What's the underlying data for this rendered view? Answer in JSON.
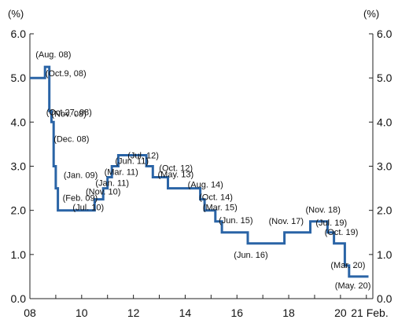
{
  "chart_data": {
    "type": "line",
    "title": "",
    "xlabel": "",
    "ylabel": "",
    "y_unit_left": "(%)",
    "y_unit_right": "(%)",
    "ylim": [
      0,
      6
    ],
    "y_ticks": [
      "0.0",
      "1.0",
      "2.0",
      "3.0",
      "4.0",
      "5.0",
      "6.0"
    ],
    "x_ticks": [
      "08",
      "10",
      "12",
      "14",
      "16",
      "18",
      "20",
      "21 Feb."
    ],
    "grid": false,
    "line_color": "#2a64a6",
    "series": [
      {
        "step": true,
        "points": [
          [
            "2008-01",
            5.0
          ],
          [
            "2008-08",
            5.25
          ],
          [
            "2008-10",
            5.0
          ],
          [
            "2008-10",
            4.25
          ],
          [
            "2008-11",
            4.0
          ],
          [
            "2008-12",
            3.0
          ],
          [
            "2009-01",
            2.5
          ],
          [
            "2009-02",
            2.0
          ],
          [
            "2010-07",
            2.25
          ],
          [
            "2010-11",
            2.5
          ],
          [
            "2011-01",
            2.75
          ],
          [
            "2011-03",
            3.0
          ],
          [
            "2011-06",
            3.25
          ],
          [
            "2012-07",
            3.0
          ],
          [
            "2012-10",
            2.75
          ],
          [
            "2013-05",
            2.5
          ],
          [
            "2014-08",
            2.25
          ],
          [
            "2014-10",
            2.0
          ],
          [
            "2015-03",
            1.75
          ],
          [
            "2015-06",
            1.5
          ],
          [
            "2016-06",
            1.25
          ],
          [
            "2017-11",
            1.5
          ],
          [
            "2018-11",
            1.75
          ],
          [
            "2019-07",
            1.5
          ],
          [
            "2019-10",
            1.25
          ],
          [
            "2020-03",
            0.75
          ],
          [
            "2020-05",
            0.5
          ],
          [
            "2021-02",
            0.5
          ]
        ]
      }
    ],
    "annotations": [
      {
        "text": "(Aug. 08)",
        "date": "2008-08",
        "value": 5.25
      },
      {
        "text": "(Oct.9, 08)",
        "date": "2008-10",
        "value": 5.0
      },
      {
        "text": "(Oct.27, 08)",
        "date": "2008-10",
        "value": 4.25
      },
      {
        "text": "(Nov. 08)",
        "date": "2008-11",
        "value": 4.0
      },
      {
        "text": "(Dec. 08)",
        "date": "2008-12",
        "value": 3.0
      },
      {
        "text": "(Jan. 09)",
        "date": "2009-01",
        "value": 2.5
      },
      {
        "text": "(Feb. 09)",
        "date": "2009-02",
        "value": 2.0
      },
      {
        "text": "(Jul. 10)",
        "date": "2010-07",
        "value": 2.25
      },
      {
        "text": "(Nov. 10)",
        "date": "2010-11",
        "value": 2.5
      },
      {
        "text": "(Jan. 11)",
        "date": "2011-01",
        "value": 2.75
      },
      {
        "text": "(Mar. 11)",
        "date": "2011-03",
        "value": 3.0
      },
      {
        "text": "(Jun. 11)",
        "date": "2011-06",
        "value": 3.25
      },
      {
        "text": "(Jul. 12)",
        "date": "2012-07",
        "value": 3.0
      },
      {
        "text": "(Oct. 12)",
        "date": "2012-10",
        "value": 2.75
      },
      {
        "text": "(May. 13)",
        "date": "2013-05",
        "value": 2.5
      },
      {
        "text": "(Aug. 14)",
        "date": "2014-08",
        "value": 2.25
      },
      {
        "text": "(Oct. 14)",
        "date": "2014-10",
        "value": 2.0
      },
      {
        "text": "(Mar. 15)",
        "date": "2015-03",
        "value": 1.75
      },
      {
        "text": "(Jun. 15)",
        "date": "2015-06",
        "value": 1.5
      },
      {
        "text": "(Jun. 16)",
        "date": "2016-06",
        "value": 1.25
      },
      {
        "text": "(Nov. 17)",
        "date": "2017-11",
        "value": 1.5
      },
      {
        "text": "(Nov. 18)",
        "date": "2018-11",
        "value": 1.75
      },
      {
        "text": "(Jul. 19)",
        "date": "2019-07",
        "value": 1.5
      },
      {
        "text": "(Oct. 19)",
        "date": "2019-10",
        "value": 1.25
      },
      {
        "text": "(Mar. 20)",
        "date": "2020-03",
        "value": 0.75
      },
      {
        "text": "(May. 20)",
        "date": "2020-05",
        "value": 0.5
      }
    ]
  }
}
